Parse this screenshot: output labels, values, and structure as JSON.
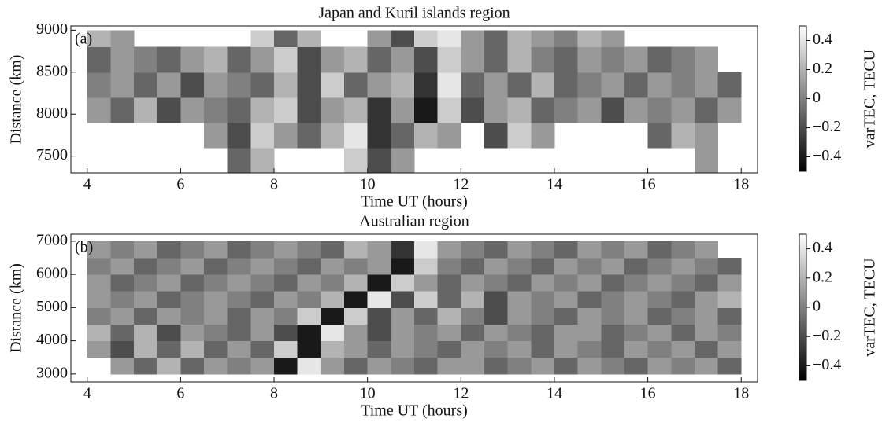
{
  "chart_data": [
    {
      "type": "heatmap",
      "title": "Japan and Kuril islands region",
      "panel_label": "(a)",
      "xlabel": "Time UT (hours)",
      "ylabel": "Distance (km)",
      "colormap": "gray",
      "x": [
        4,
        4.5,
        5,
        5.5,
        6,
        6.5,
        7,
        7.5,
        8,
        8.5,
        9,
        9.5,
        10,
        10.5,
        11,
        11.5,
        12,
        12.5,
        13,
        13.5,
        14,
        14.5,
        15,
        15.5,
        16,
        16.5,
        17,
        17.5,
        18
      ],
      "y": [
        7300,
        7600,
        7900,
        8200,
        8500,
        8800,
        9000
      ],
      "z": [
        [
          null,
          null,
          null,
          null,
          null,
          null,
          -0.1,
          0.2,
          null,
          null,
          null,
          0.3,
          -0.2,
          0.1,
          null,
          null,
          null,
          null,
          null,
          null,
          null,
          null,
          null,
          null,
          null,
          null,
          0.1,
          null
        ],
        [
          null,
          null,
          null,
          null,
          null,
          0.1,
          -0.2,
          0.3,
          0.1,
          -0.1,
          0.2,
          0.4,
          -0.3,
          -0.1,
          0.2,
          0.1,
          null,
          -0.2,
          0.3,
          0.1,
          null,
          null,
          null,
          null,
          -0.1,
          0.2,
          0.1,
          null
        ],
        [
          0.1,
          -0.1,
          0.2,
          -0.2,
          0.1,
          0,
          -0.1,
          0.2,
          0.3,
          -0.2,
          0.1,
          0.2,
          -0.3,
          0.1,
          -0.4,
          0.3,
          -0.2,
          0.1,
          0.2,
          -0.1,
          0,
          0.1,
          -0.2,
          0.1,
          0,
          0.1,
          -0.1,
          0.1
        ],
        [
          0,
          0.1,
          -0.1,
          0.1,
          -0.2,
          0.1,
          0,
          -0.1,
          0.2,
          -0.2,
          0.3,
          -0.1,
          0.1,
          0.2,
          -0.3,
          0.4,
          -0.1,
          0.1,
          -0.1,
          0.2,
          -0.1,
          0,
          0.1,
          -0.1,
          0.1,
          0,
          0.1,
          -0.1
        ],
        [
          -0.1,
          0.1,
          0,
          -0.1,
          0.1,
          0.2,
          -0.1,
          0.1,
          0.3,
          -0.2,
          0.1,
          0.2,
          -0.1,
          0.1,
          -0.2,
          0.3,
          0.1,
          -0.1,
          0.2,
          0,
          -0.1,
          0.1,
          0,
          0.1,
          -0.1,
          0,
          0.1,
          null
        ],
        [
          0.2,
          0.1,
          null,
          null,
          null,
          null,
          null,
          0.3,
          -0.1,
          0.2,
          null,
          null,
          0.1,
          -0.2,
          0.3,
          0.4,
          0.1,
          -0.1,
          0.2,
          0.1,
          0,
          0.2,
          0.1,
          null,
          null,
          null,
          null,
          null
        ]
      ],
      "xlim": [
        3.65,
        18.35
      ],
      "ylim": [
        7300,
        9050
      ],
      "xticks": [
        4,
        6,
        8,
        10,
        12,
        14,
        16,
        18
      ],
      "yticks": [
        7500,
        8000,
        8500,
        9000
      ],
      "colorbar": {
        "label": "varTEC, TECU",
        "zlim": [
          -0.5,
          0.5
        ],
        "ticks": [
          {
            "value": -0.4,
            "label": "−0.4"
          },
          {
            "value": -0.2,
            "label": "−0.2"
          },
          0,
          0.2,
          0.4
        ]
      }
    },
    {
      "type": "heatmap",
      "title": "Australian region",
      "panel_label": "(b)",
      "xlabel": "Time UT (hours)",
      "ylabel": "Distance (km)",
      "colormap": "gray",
      "x": [
        4,
        4.5,
        5,
        5.5,
        6,
        6.5,
        7,
        7.5,
        8,
        8.5,
        9,
        9.5,
        10,
        10.5,
        11,
        11.5,
        12,
        12.5,
        13,
        13.5,
        14,
        14.5,
        15,
        15.5,
        16,
        16.5,
        17,
        17.5,
        18
      ],
      "y": [
        3000,
        3500,
        4000,
        4500,
        5000,
        5500,
        6000,
        6500,
        7000
      ],
      "z": [
        [
          null,
          0.1,
          -0.1,
          0.2,
          -0.1,
          0.1,
          0,
          0.1,
          -0.4,
          0.4,
          0.1,
          -0.1,
          0.1,
          0,
          -0.1,
          0.1,
          0.1,
          -0.1,
          0,
          0.1,
          -0.1,
          0.1,
          0,
          -0.1,
          0.1,
          0,
          0.1,
          -0.1
        ],
        [
          0.1,
          -0.2,
          0.2,
          -0.1,
          0.2,
          -0.1,
          0.1,
          -0.1,
          0.3,
          -0.4,
          0.2,
          0.1,
          -0.1,
          0.1,
          0,
          -0.1,
          0.1,
          0,
          0.1,
          -0.1,
          0.1,
          0,
          -0.1,
          0.1,
          0,
          0.1,
          -0.1,
          0.1
        ],
        [
          0.2,
          -0.1,
          0.2,
          -0.2,
          0.1,
          0,
          -0.1,
          0.1,
          -0.2,
          -0.4,
          0.4,
          0.1,
          -0.2,
          0.1,
          0,
          0.1,
          -0.1,
          0.1,
          0,
          -0.1,
          0.1,
          0.1,
          -0.1,
          0,
          0.1,
          -0.1,
          0.1,
          0
        ],
        [
          0,
          0.1,
          -0.1,
          0.1,
          0,
          0.1,
          -0.1,
          0.1,
          0,
          0.3,
          -0.4,
          0.3,
          -0.2,
          0.1,
          -0.1,
          0.2,
          0,
          -0.2,
          0.1,
          0,
          -0.1,
          0.1,
          0,
          0.1,
          -0.1,
          0,
          0.1,
          -0.1
        ],
        [
          0.1,
          0,
          0.1,
          -0.1,
          0,
          0.1,
          0,
          -0.1,
          0.1,
          0,
          0.2,
          -0.4,
          0.4,
          -0.2,
          0.3,
          -0.1,
          0.2,
          -0.2,
          0.1,
          0,
          0.1,
          -0.1,
          0,
          0.1,
          0,
          -0.1,
          0.1,
          0.2
        ],
        [
          0.1,
          -0.1,
          0,
          0.1,
          -0.1,
          0,
          0.1,
          0,
          -0.1,
          0.1,
          0,
          0.2,
          -0.4,
          0.3,
          0.1,
          -0.1,
          0.1,
          0,
          -0.1,
          0.1,
          0,
          0.1,
          -0.1,
          0,
          0.1,
          0,
          -0.1,
          0.1
        ],
        [
          0,
          0.1,
          -0.1,
          0,
          0.1,
          -0.1,
          0,
          0.1,
          0,
          -0.1,
          0.1,
          0,
          0.1,
          -0.4,
          0.3,
          0,
          -0.1,
          0.1,
          0,
          -0.1,
          0.1,
          0,
          0.1,
          -0.1,
          0,
          0.1,
          0,
          -0.1
        ],
        [
          0.1,
          0,
          0.1,
          -0.1,
          0,
          0.1,
          -0.1,
          0,
          0.1,
          0,
          -0.1,
          0.2,
          0.1,
          -0.3,
          0.4,
          0.1,
          0,
          -0.1,
          0.1,
          0,
          -0.1,
          0.1,
          0,
          0.1,
          -0.1,
          0,
          0.1,
          null
        ]
      ],
      "xlim": [
        3.65,
        18.35
      ],
      "ylim": [
        2760,
        7210
      ],
      "xticks": [
        4,
        6,
        8,
        10,
        12,
        14,
        16,
        18
      ],
      "yticks": [
        3000,
        4000,
        5000,
        6000,
        7000
      ],
      "colorbar": {
        "label": "varTEC, TECU",
        "zlim": [
          -0.5,
          0.5
        ],
        "ticks": [
          {
            "value": -0.4,
            "label": "−0.4"
          },
          {
            "value": -0.2,
            "label": "−0.2"
          },
          0,
          0.2,
          0.4
        ]
      }
    }
  ]
}
